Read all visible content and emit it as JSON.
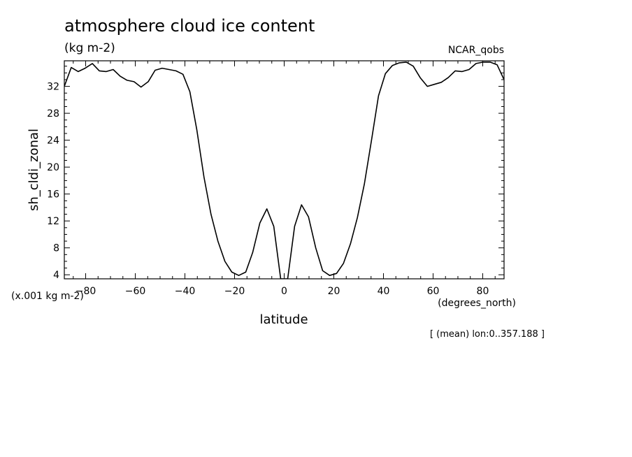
{
  "chart_data": {
    "type": "line",
    "title": "atmosphere cloud ice content",
    "units": "(kg m-2)",
    "source_label": "NCAR_qobs",
    "xlabel": "latitude",
    "x_units": "(degrees_north)",
    "ylabel": "sh_cldi_zonal",
    "y_scale_note": "(x.001 kg m-2)",
    "footnote": "[ (mean) lon:0..357.188 ]",
    "xlim": [
      -88.6,
      88.6
    ],
    "ylim": [
      3.4,
      35.8
    ],
    "x_ticks": [
      -80,
      -60,
      -40,
      -20,
      0,
      20,
      40,
      60,
      80
    ],
    "y_ticks": [
      4,
      8,
      12,
      16,
      20,
      24,
      28,
      32
    ],
    "grid": false,
    "series": [
      {
        "color": "#000000",
        "x": [
          -88.6,
          -85.8,
          -83.0,
          -80.2,
          -77.3,
          -74.5,
          -71.7,
          -68.9,
          -66.1,
          -63.3,
          -60.5,
          -57.7,
          -54.8,
          -52.0,
          -49.2,
          -46.4,
          -43.6,
          -40.8,
          -38.0,
          -35.2,
          -32.3,
          -29.5,
          -26.7,
          -23.9,
          -21.1,
          -18.3,
          -15.5,
          -12.7,
          -9.8,
          -7.0,
          -4.2,
          -1.4,
          1.4,
          4.2,
          7.0,
          9.8,
          12.7,
          15.5,
          18.3,
          21.1,
          23.9,
          26.7,
          29.5,
          32.3,
          35.2,
          38.0,
          40.8,
          43.6,
          46.4,
          49.2,
          52.0,
          54.8,
          57.7,
          60.5,
          63.3,
          66.1,
          68.9,
          71.7,
          74.5,
          77.3,
          80.2,
          83.0,
          85.8,
          88.6
        ],
        "values": [
          32.0,
          34.8,
          34.2,
          34.7,
          35.4,
          34.3,
          34.2,
          34.5,
          33.5,
          32.9,
          32.7,
          31.9,
          32.7,
          34.4,
          34.7,
          34.5,
          34.3,
          33.8,
          31.2,
          25.5,
          18.5,
          13.0,
          9.0,
          6.0,
          4.4,
          3.9,
          4.4,
          7.3,
          11.7,
          13.8,
          11.2,
          3.4,
          3.4,
          11.2,
          14.4,
          12.6,
          8.0,
          4.6,
          3.9,
          4.2,
          5.7,
          8.6,
          12.5,
          17.5,
          24.0,
          30.6,
          33.9,
          35.1,
          35.5,
          35.6,
          35.0,
          33.3,
          32.0,
          32.3,
          32.6,
          33.3,
          34.3,
          34.2,
          34.5,
          35.4,
          35.6,
          35.6,
          35.2,
          33.0
        ]
      }
    ]
  }
}
